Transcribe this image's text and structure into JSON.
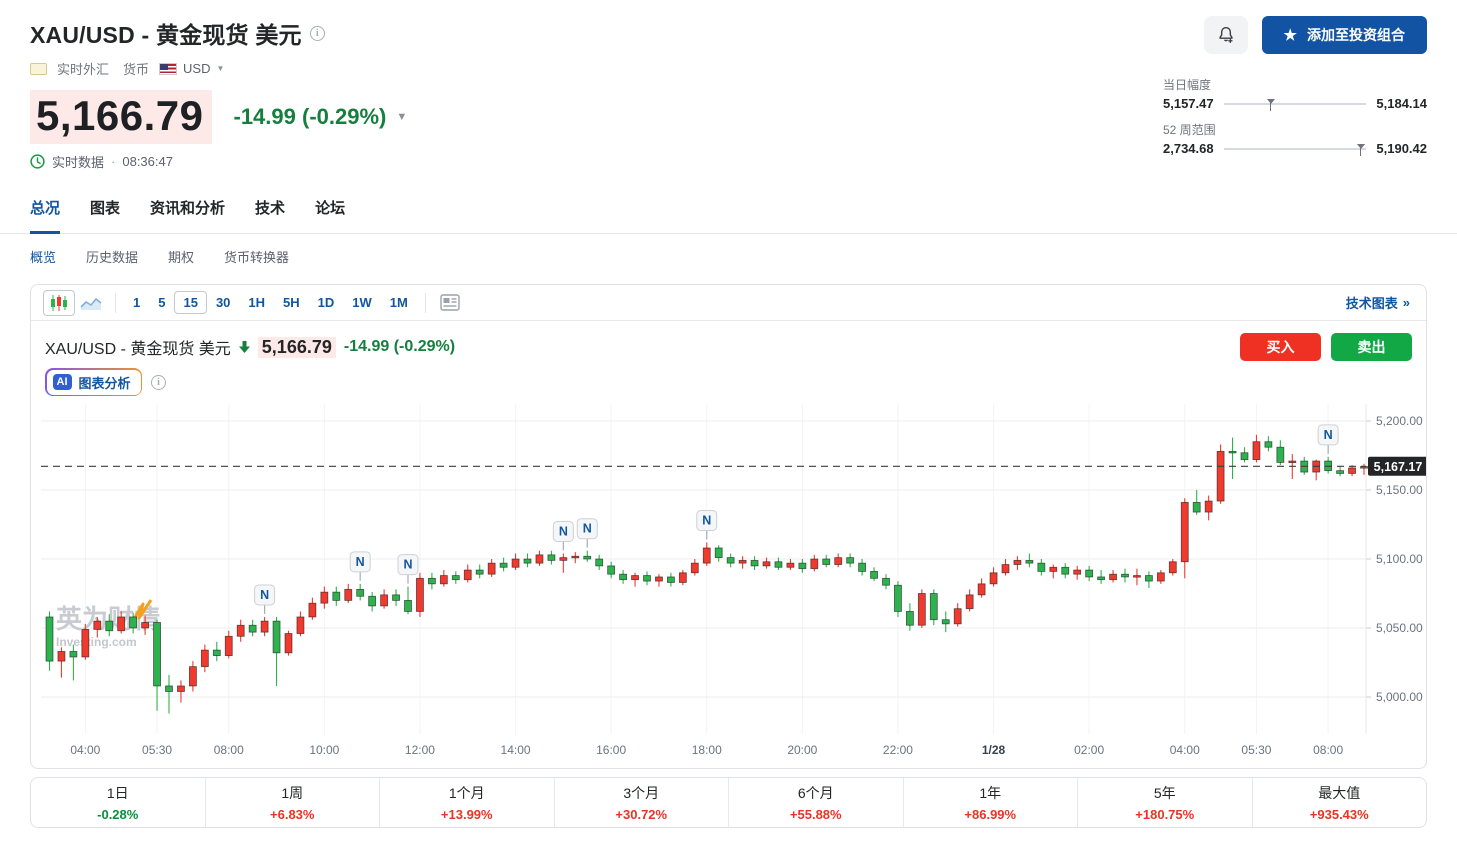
{
  "colors": {
    "accent_blue": "#1256a0",
    "cta_blue": "#1254a3",
    "change_green": "#157f3d",
    "buy_red": "#ef3124",
    "sell_green": "#12a846",
    "up_candle": "#f03a2e",
    "down_candle": "#2eb24d",
    "perf_up_red": "#e93423",
    "perf_down_green": "#0a8f3c",
    "last_label_bg": "#232526"
  },
  "header": {
    "title": "XAU/USD - 黄金现货 美元",
    "market_label": "实时外汇",
    "currency_label": "货币",
    "currency": "USD",
    "price": "5,166.79",
    "change": "-14.99 (-0.29%)",
    "status_label": "实时数据",
    "status_sep": "·",
    "status_time": "08:36:47",
    "add_button": "添加至投资组合",
    "star": "★",
    "day_range_label": "当日幅度",
    "day_range_low": "5,157.47",
    "day_range_high": "5,184.14",
    "day_range_pct": 33,
    "week52_label": "52 周范围",
    "week52_low": "2,734.68",
    "week52_high": "5,190.42",
    "week52_pct": 96
  },
  "tabs": {
    "items": [
      "总况",
      "图表",
      "资讯和分析",
      "技术",
      "论坛"
    ],
    "active_index": 0
  },
  "subtabs": {
    "items": [
      "概览",
      "历史数据",
      "期权",
      "货币转换器"
    ],
    "active_index": 0
  },
  "toolbar": {
    "timeframes": [
      "1",
      "5",
      "15",
      "30",
      "1H",
      "5H",
      "1D",
      "1W",
      "1M"
    ],
    "active_timeframe": "15",
    "tech_chart_label": "技术图表",
    "tech_chart_arrow": "»"
  },
  "chart_head": {
    "title": "XAU/USD - 黄金现货 美元",
    "price": "5,166.79",
    "change": "-14.99 (-0.29%)",
    "buy_label": "买入",
    "sell_label": "卖出",
    "ai_badge": "AI",
    "ai_label": "图表分析"
  },
  "chart_data": {
    "type": "candlestick",
    "title": "XAU/USD 15-minute candles",
    "ylim": [
      4985,
      5205
    ],
    "grid": true,
    "watermark": {
      "cn": "英为财情",
      "en": "Investing.com"
    },
    "last_price": 5167.17,
    "last_price_label": "5,167.17",
    "y_ticks": [
      {
        "p": 5200,
        "label": "5,200.00"
      },
      {
        "p": 5150,
        "label": "5,150.00"
      },
      {
        "p": 5100,
        "label": "5,100.00"
      },
      {
        "p": 5050,
        "label": "5,050.00"
      },
      {
        "p": 5000,
        "label": "5,000.00"
      }
    ],
    "x_ticks": [
      {
        "i": 3,
        "label": "04:00"
      },
      {
        "i": 9,
        "label": "05:30"
      },
      {
        "i": 15,
        "label": "08:00"
      },
      {
        "i": 23,
        "label": "10:00"
      },
      {
        "i": 31,
        "label": "12:00"
      },
      {
        "i": 39,
        "label": "14:00"
      },
      {
        "i": 47,
        "label": "16:00"
      },
      {
        "i": 55,
        "label": "18:00"
      },
      {
        "i": 63,
        "label": "20:00"
      },
      {
        "i": 71,
        "label": "22:00"
      },
      {
        "i": 79,
        "label": "1/28"
      },
      {
        "i": 87,
        "label": "02:00"
      },
      {
        "i": 95,
        "label": "04:00"
      },
      {
        "i": 101,
        "label": "05:30"
      },
      {
        "i": 107,
        "label": "08:00"
      }
    ],
    "news_markers": {
      "glyph": "N",
      "indexes": [
        18,
        26,
        30,
        43,
        45,
        55,
        107
      ]
    },
    "candles": [
      [
        5058,
        5062,
        5019,
        5026
      ],
      [
        5026,
        5036,
        5014,
        5033
      ],
      [
        5033,
        5038,
        5012,
        5029
      ],
      [
        5029,
        5053,
        5027,
        5049
      ],
      [
        5049,
        5058,
        5043,
        5055
      ],
      [
        5055,
        5060,
        5044,
        5048
      ],
      [
        5048,
        5062,
        5046,
        5058
      ],
      [
        5058,
        5061,
        5046,
        5050
      ],
      [
        5050,
        5059,
        5045,
        5054
      ],
      [
        5054,
        5056,
        4990,
        5008
      ],
      [
        5008,
        5016,
        4988,
        5004
      ],
      [
        5004,
        5012,
        4996,
        5008
      ],
      [
        5008,
        5026,
        5004,
        5022
      ],
      [
        5022,
        5038,
        5018,
        5034
      ],
      [
        5034,
        5040,
        5026,
        5030
      ],
      [
        5030,
        5048,
        5028,
        5044
      ],
      [
        5044,
        5056,
        5040,
        5052
      ],
      [
        5052,
        5056,
        5044,
        5047
      ],
      [
        5047,
        5058,
        5044,
        5055
      ],
      [
        5055,
        5058,
        5008,
        5032
      ],
      [
        5032,
        5048,
        5030,
        5046
      ],
      [
        5046,
        5062,
        5044,
        5058
      ],
      [
        5058,
        5072,
        5056,
        5068
      ],
      [
        5068,
        5080,
        5064,
        5076
      ],
      [
        5076,
        5080,
        5066,
        5070
      ],
      [
        5070,
        5082,
        5068,
        5078
      ],
      [
        5078,
        5082,
        5070,
        5073
      ],
      [
        5073,
        5076,
        5062,
        5066
      ],
      [
        5066,
        5078,
        5064,
        5074
      ],
      [
        5074,
        5078,
        5066,
        5070
      ],
      [
        5070,
        5080,
        5060,
        5062
      ],
      [
        5062,
        5090,
        5058,
        5086
      ],
      [
        5086,
        5090,
        5078,
        5082
      ],
      [
        5082,
        5092,
        5080,
        5088
      ],
      [
        5088,
        5091,
        5082,
        5085
      ],
      [
        5085,
        5096,
        5083,
        5092
      ],
      [
        5092,
        5096,
        5086,
        5089
      ],
      [
        5089,
        5100,
        5087,
        5097
      ],
      [
        5097,
        5101,
        5091,
        5094
      ],
      [
        5094,
        5104,
        5092,
        5100
      ],
      [
        5100,
        5104,
        5094,
        5097
      ],
      [
        5097,
        5106,
        5095,
        5103
      ],
      [
        5103,
        5106,
        5096,
        5099
      ],
      [
        5099,
        5104,
        5090,
        5101
      ],
      [
        5101,
        5105,
        5097,
        5102
      ],
      [
        5102,
        5106,
        5098,
        5100
      ],
      [
        5100,
        5103,
        5092,
        5095
      ],
      [
        5095,
        5098,
        5086,
        5089
      ],
      [
        5089,
        5092,
        5082,
        5085
      ],
      [
        5085,
        5090,
        5080,
        5088
      ],
      [
        5088,
        5091,
        5081,
        5084
      ],
      [
        5084,
        5089,
        5080,
        5087
      ],
      [
        5087,
        5090,
        5080,
        5083
      ],
      [
        5083,
        5092,
        5081,
        5090
      ],
      [
        5090,
        5100,
        5088,
        5097
      ],
      [
        5097,
        5112,
        5095,
        5108
      ],
      [
        5108,
        5110,
        5098,
        5101
      ],
      [
        5101,
        5104,
        5094,
        5097
      ],
      [
        5097,
        5102,
        5093,
        5099
      ],
      [
        5099,
        5102,
        5092,
        5095
      ],
      [
        5095,
        5101,
        5093,
        5098
      ],
      [
        5098,
        5101,
        5092,
        5094
      ],
      [
        5094,
        5100,
        5092,
        5097
      ],
      [
        5097,
        5100,
        5090,
        5093
      ],
      [
        5093,
        5103,
        5091,
        5100
      ],
      [
        5100,
        5103,
        5094,
        5096
      ],
      [
        5096,
        5104,
        5094,
        5101
      ],
      [
        5101,
        5104,
        5094,
        5097
      ],
      [
        5097,
        5100,
        5088,
        5091
      ],
      [
        5091,
        5094,
        5084,
        5086
      ],
      [
        5086,
        5089,
        5078,
        5081
      ],
      [
        5081,
        5084,
        5058,
        5062
      ],
      [
        5062,
        5068,
        5048,
        5052
      ],
      [
        5052,
        5078,
        5050,
        5075
      ],
      [
        5075,
        5078,
        5052,
        5056
      ],
      [
        5056,
        5062,
        5047,
        5053
      ],
      [
        5053,
        5068,
        5051,
        5064
      ],
      [
        5064,
        5078,
        5062,
        5074
      ],
      [
        5074,
        5086,
        5072,
        5082
      ],
      [
        5082,
        5094,
        5080,
        5090
      ],
      [
        5090,
        5100,
        5088,
        5096
      ],
      [
        5096,
        5102,
        5092,
        5099
      ],
      [
        5099,
        5104,
        5094,
        5097
      ],
      [
        5097,
        5100,
        5088,
        5091
      ],
      [
        5091,
        5096,
        5086,
        5094
      ],
      [
        5094,
        5097,
        5086,
        5089
      ],
      [
        5089,
        5095,
        5085,
        5092
      ],
      [
        5092,
        5095,
        5084,
        5087
      ],
      [
        5087,
        5092,
        5082,
        5085
      ],
      [
        5085,
        5092,
        5083,
        5089
      ],
      [
        5089,
        5093,
        5083,
        5087
      ],
      [
        5087,
        5093,
        5081,
        5088
      ],
      [
        5088,
        5091,
        5079,
        5084
      ],
      [
        5084,
        5092,
        5082,
        5090
      ],
      [
        5090,
        5100,
        5088,
        5098
      ],
      [
        5098,
        5144,
        5086,
        5141
      ],
      [
        5141,
        5150,
        5132,
        5134
      ],
      [
        5134,
        5146,
        5128,
        5142
      ],
      [
        5142,
        5183,
        5140,
        5178
      ],
      [
        5178,
        5188,
        5158,
        5177
      ],
      [
        5177,
        5181,
        5170,
        5172
      ],
      [
        5172,
        5190,
        5170,
        5185
      ],
      [
        5185,
        5189,
        5178,
        5181
      ],
      [
        5181,
        5186,
        5168,
        5170
      ],
      [
        5170,
        5176,
        5158,
        5171
      ],
      [
        5171,
        5174,
        5161,
        5163
      ],
      [
        5163,
        5172,
        5157,
        5171
      ],
      [
        5171,
        5174,
        5162,
        5164
      ],
      [
        5164,
        5167,
        5160,
        5162
      ],
      [
        5162,
        5168,
        5160,
        5166
      ],
      [
        5166,
        5169,
        5161,
        5167
      ]
    ]
  },
  "performance": [
    {
      "label": "1日",
      "value": "-0.28%"
    },
    {
      "label": "1周",
      "value": "+6.83%"
    },
    {
      "label": "1个月",
      "value": "+13.99%"
    },
    {
      "label": "3个月",
      "value": "+30.72%"
    },
    {
      "label": "6个月",
      "value": "+55.88%"
    },
    {
      "label": "1年",
      "value": "+86.99%"
    },
    {
      "label": "5年",
      "value": "+180.75%"
    },
    {
      "label": "最大值",
      "value": "+935.43%"
    }
  ]
}
